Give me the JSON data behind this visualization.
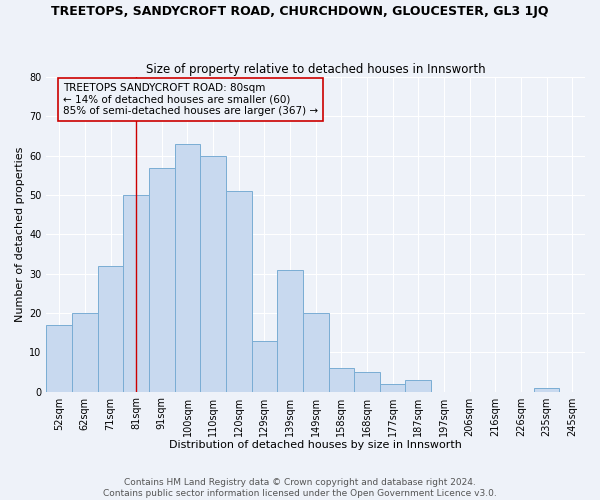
{
  "title": "TREETOPS, SANDYCROFT ROAD, CHURCHDOWN, GLOUCESTER, GL3 1JQ",
  "subtitle": "Size of property relative to detached houses in Innsworth",
  "xlabel": "Distribution of detached houses by size in Innsworth",
  "ylabel": "Number of detached properties",
  "bar_labels": [
    "52sqm",
    "62sqm",
    "71sqm",
    "81sqm",
    "91sqm",
    "100sqm",
    "110sqm",
    "120sqm",
    "129sqm",
    "139sqm",
    "149sqm",
    "158sqm",
    "168sqm",
    "177sqm",
    "187sqm",
    "197sqm",
    "206sqm",
    "216sqm",
    "226sqm",
    "235sqm",
    "245sqm"
  ],
  "bar_values": [
    17,
    20,
    32,
    50,
    57,
    63,
    60,
    51,
    13,
    31,
    20,
    6,
    5,
    2,
    3,
    0,
    0,
    0,
    0,
    1,
    0
  ],
  "bar_color": "#c8d9ef",
  "bar_edge_color": "#7aadd4",
  "annotation_line_x_label": "81sqm",
  "annotation_text_line1": "TREETOPS SANDYCROFT ROAD: 80sqm",
  "annotation_text_line2": "← 14% of detached houses are smaller (60)",
  "annotation_text_line3": "85% of semi-detached houses are larger (367) →",
  "annotation_box_edge_color": "#cc0000",
  "vline_color": "#cc0000",
  "ylim": [
    0,
    80
  ],
  "footer_line1": "Contains HM Land Registry data © Crown copyright and database right 2024.",
  "footer_line2": "Contains public sector information licensed under the Open Government Licence v3.0.",
  "background_color": "#eef2f9",
  "title_fontsize": 9,
  "subtitle_fontsize": 8.5,
  "axis_label_fontsize": 8,
  "tick_fontsize": 7,
  "annotation_fontsize": 7.5,
  "footer_fontsize": 6.5
}
